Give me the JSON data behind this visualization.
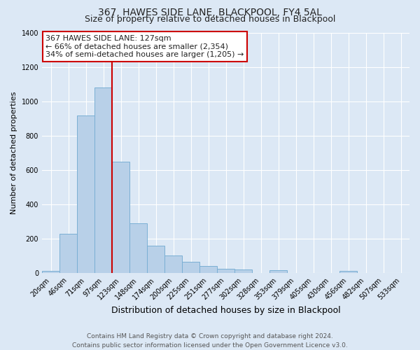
{
  "title": "367, HAWES SIDE LANE, BLACKPOOL, FY4 5AL",
  "subtitle": "Size of property relative to detached houses in Blackpool",
  "xlabel": "Distribution of detached houses by size in Blackpool",
  "ylabel": "Number of detached properties",
  "bar_labels": [
    "20sqm",
    "46sqm",
    "71sqm",
    "97sqm",
    "123sqm",
    "148sqm",
    "174sqm",
    "200sqm",
    "225sqm",
    "251sqm",
    "277sqm",
    "302sqm",
    "328sqm",
    "353sqm",
    "379sqm",
    "405sqm",
    "430sqm",
    "456sqm",
    "482sqm",
    "507sqm",
    "533sqm"
  ],
  "bar_values": [
    15,
    227,
    918,
    1080,
    648,
    290,
    158,
    103,
    65,
    42,
    27,
    20,
    0,
    18,
    0,
    0,
    0,
    15,
    0,
    0,
    0
  ],
  "bar_color": "#b8d0e8",
  "bar_edgecolor": "#7aafd4",
  "ylim": [
    0,
    1400
  ],
  "yticks": [
    0,
    200,
    400,
    600,
    800,
    1000,
    1200,
    1400
  ],
  "vline_index": 4,
  "vline_color": "#cc0000",
  "annotation_title": "367 HAWES SIDE LANE: 127sqm",
  "annotation_line1": "← 66% of detached houses are smaller (2,354)",
  "annotation_line2": "34% of semi-detached houses are larger (1,205) →",
  "annotation_box_color": "#ffffff",
  "annotation_box_edgecolor": "#cc0000",
  "footer_line1": "Contains HM Land Registry data © Crown copyright and database right 2024.",
  "footer_line2": "Contains public sector information licensed under the Open Government Licence v3.0.",
  "background_color": "#dce8f5",
  "plot_bg_color": "#dce8f5",
  "grid_color": "#ffffff",
  "title_fontsize": 10,
  "subtitle_fontsize": 9,
  "xlabel_fontsize": 9,
  "ylabel_fontsize": 8,
  "tick_fontsize": 7,
  "annotation_fontsize": 8,
  "footer_fontsize": 6.5
}
